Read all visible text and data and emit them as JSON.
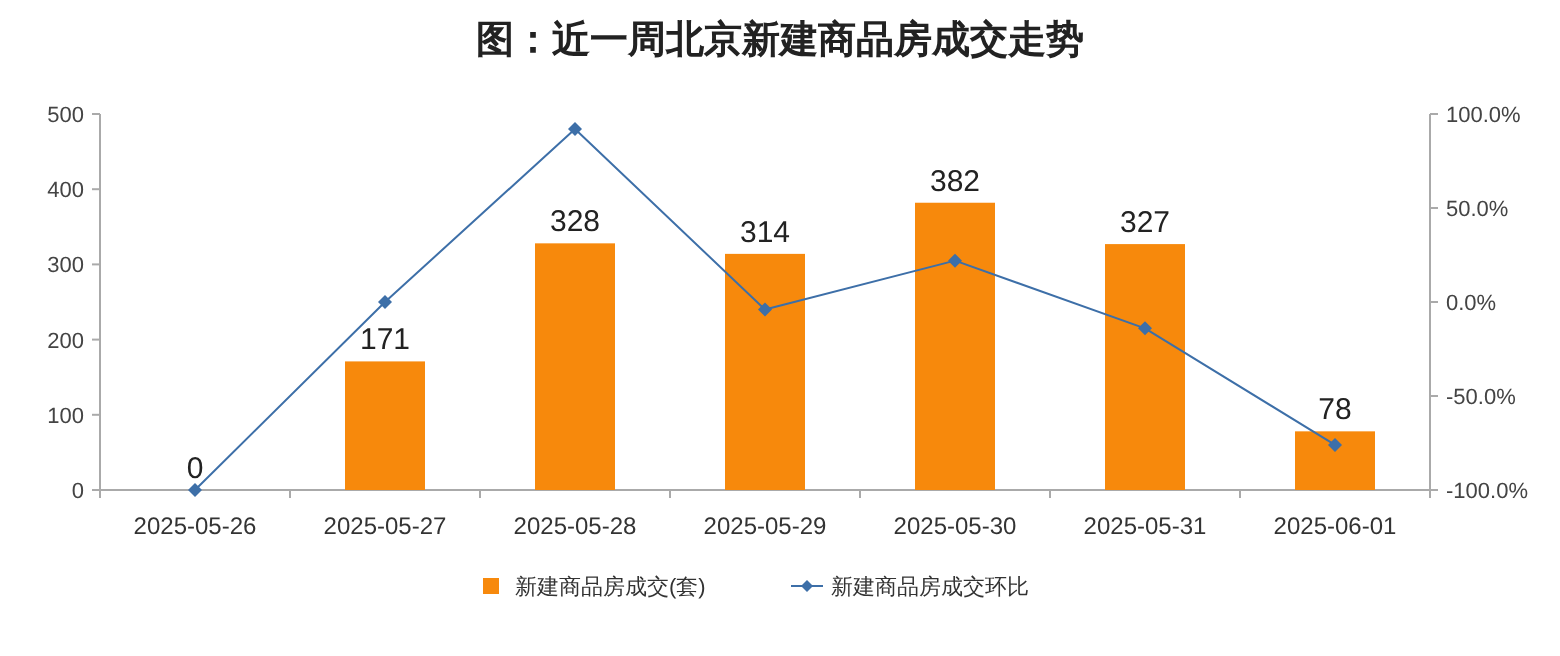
{
  "chart_data": {
    "type": "bar",
    "title": "图：近一周北京新建商品房成交走势",
    "categories": [
      "2025-05-26",
      "2025-05-27",
      "2025-05-28",
      "2025-05-29",
      "2025-05-30",
      "2025-05-31",
      "2025-06-01"
    ],
    "series": [
      {
        "name": "新建商品房成交(套)",
        "color": "#f7890c",
        "values": [
          0,
          171,
          328,
          314,
          382,
          327,
          78
        ],
        "value_labels": [
          "0",
          "171",
          "328",
          "314",
          "382",
          "327",
          "78"
        ]
      },
      {
        "name": "新建商品房成交环比",
        "type": "line",
        "axis": "y2",
        "color": "#3d6fa8",
        "marker": "diamond",
        "values": [
          -100,
          0,
          92,
          -4,
          22,
          -14,
          -76
        ]
      }
    ],
    "ylim": [
      0,
      500
    ],
    "yticks": [
      0,
      100,
      200,
      300,
      400,
      500
    ],
    "y2lim": [
      -100,
      100
    ],
    "y2ticks": [
      {
        "value": -100,
        "label": "-100.0%"
      },
      {
        "value": -50,
        "label": "-50.0%"
      },
      {
        "value": 0,
        "label": "0.0%"
      },
      {
        "value": 50,
        "label": "50.0%"
      },
      {
        "value": 100,
        "label": "100.0%"
      }
    ],
    "legend": "bottom"
  }
}
